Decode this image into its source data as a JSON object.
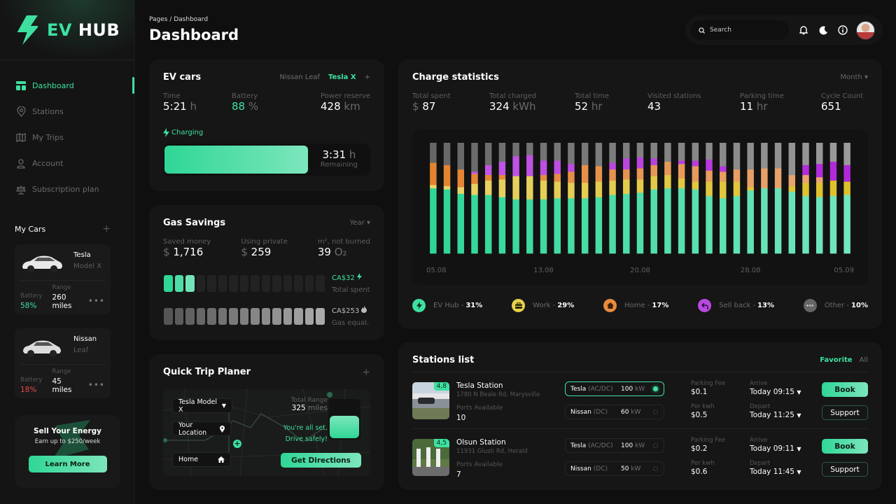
{
  "app": {
    "brand_a": "EV",
    "brand_b": "HUB"
  },
  "sidebar": {
    "items": [
      {
        "label": "Dashboard",
        "icon": "dashboard-icon",
        "active": true
      },
      {
        "label": "Stations",
        "icon": "location-pin-icon"
      },
      {
        "label": "My Trips",
        "icon": "map-icon"
      },
      {
        "label": "Account",
        "icon": "user-icon"
      },
      {
        "label": "Subscription plan",
        "icon": "scale-icon"
      }
    ],
    "my_cars_title": "My Cars",
    "cars": [
      {
        "make": "Tesla",
        "model": "Model X",
        "battery_label": "Battery",
        "battery": "58%",
        "range_label": "Range",
        "range": "260 miles",
        "battery_color": "#3ee0a0"
      },
      {
        "make": "Nissan",
        "model": "Leaf",
        "battery_label": "Battery",
        "battery": "18%",
        "range_label": "Range",
        "range": "45 miles",
        "battery_color": "#e5484d"
      }
    ],
    "promo": {
      "title": "Sell Your Energy",
      "subtitle": "Earn up to $250/week",
      "button": "Learn More"
    }
  },
  "header": {
    "breadcrumb": "Pages / Dashboard",
    "title": "Dashboard",
    "search_placeholder": "Search"
  },
  "ev_cars": {
    "title": "EV cars",
    "tabs": [
      "Nissan Leaf",
      "Tesla X"
    ],
    "active_tab": "Tesla X",
    "time_label": "Time",
    "time_value": "5:21",
    "time_unit": "h",
    "battery_label": "Battery",
    "battery_value": "88",
    "battery_unit": "%",
    "reserve_label": "Power reserve",
    "reserve_value": "428",
    "reserve_unit": "km",
    "status": "Charging",
    "charge_progress_percent": 88,
    "remaining_value": "3:31",
    "remaining_unit": "h",
    "remaining_label": "Remaining"
  },
  "gas_savings": {
    "title": "Gas Savings",
    "period": "Year",
    "saved_label": "Saved money",
    "saved_currency": "$",
    "saved_value": "1,716",
    "private_label": "Using private",
    "private_currency": "$",
    "private_value": "259",
    "co2_label": "m², not burned",
    "co2_value": "39",
    "co2_unit": "O₂",
    "spent_value": "CA$32",
    "spent_label": "Total spent",
    "spent_filled_segments": 3,
    "total_segments": 15,
    "gas_value": "CA$253",
    "gas_label": "Gas equal."
  },
  "trip": {
    "title": "Quick Trip Planer",
    "car_select": "Tesla Model X",
    "from": "Your Location",
    "to": "Home",
    "range_label": "Total Range",
    "range_value": "325",
    "range_unit": "miles",
    "message_1": "You're all set.",
    "message_2": "Drive safely!",
    "battery_level_percent": 60,
    "button": "Get Directions"
  },
  "charge_stats": {
    "title": "Charge statistics",
    "period": "Month",
    "stats": [
      {
        "label": "Total spent",
        "prefix": "$",
        "value": "87",
        "unit": ""
      },
      {
        "label": "Total charged",
        "prefix": "",
        "value": "324",
        "unit": "kWh"
      },
      {
        "label": "Total time",
        "prefix": "",
        "value": "52",
        "unit": "hr"
      },
      {
        "label": "Visited stations",
        "prefix": "",
        "value": "43",
        "unit": ""
      },
      {
        "label": "Parking time",
        "prefix": "",
        "value": "11",
        "unit": "hr"
      },
      {
        "label": "Cycle Count",
        "prefix": "",
        "value": "651",
        "unit": ""
      }
    ],
    "legend": [
      {
        "name": "EV Hub",
        "pct": "31%",
        "color": "#3ee0a0",
        "icon": "bolt-icon"
      },
      {
        "name": "Work",
        "pct": "29%",
        "color": "#e6d24a",
        "icon": "briefcase-icon"
      },
      {
        "name": "Home",
        "pct": "17%",
        "color": "#e88b3e",
        "icon": "home-icon"
      },
      {
        "name": "Sell back",
        "pct": "13%",
        "color": "#b84be0",
        "icon": "undo-arrow-icon"
      },
      {
        "name": "Other",
        "pct": "10%",
        "color": "#777777",
        "icon": "more-dots-icon"
      }
    ]
  },
  "chart_data": {
    "type": "bar",
    "stacked": true,
    "normalized": true,
    "title": "Charge statistics",
    "xlabel": "",
    "ylabel": "",
    "ylim": [
      0,
      100
    ],
    "x_ticks": [
      "05.08",
      "13.08",
      "20.08",
      "28.08",
      "05.09"
    ],
    "categories": [
      "05.08",
      "06.08",
      "07.08",
      "08.08",
      "09.08",
      "10.08",
      "11.08",
      "12.08",
      "13.08",
      "14.08",
      "15.08",
      "16.08",
      "17.08",
      "18.08",
      "19.08",
      "20.08",
      "21.08",
      "22.08",
      "23.08",
      "24.08",
      "25.08",
      "26.08",
      "27.08",
      "28.08",
      "29.08",
      "30.08",
      "31.08",
      "01.09",
      "02.09",
      "03.09",
      "04.09"
    ],
    "series": [
      {
        "name": "EV Hub",
        "color": "#3ee0a0",
        "values": [
          59,
          58,
          54,
          53,
          53,
          51,
          49,
          49,
          49,
          50,
          50,
          50,
          51,
          53,
          54,
          55,
          58,
          59,
          59,
          58,
          52,
          50,
          52,
          57,
          59,
          59,
          56,
          52,
          51,
          52,
          53
        ]
      },
      {
        "name": "Work",
        "color": "#e6d24a",
        "values": [
          3,
          3,
          6,
          10,
          13,
          16,
          21,
          21,
          17,
          15,
          14,
          14,
          14,
          13,
          13,
          12,
          12,
          12,
          9,
          7,
          13,
          15,
          13,
          3,
          0,
          0,
          5,
          12,
          13,
          14,
          12
        ]
      },
      {
        "name": "Home",
        "color": "#e88b3e",
        "values": [
          20,
          19,
          16,
          9,
          5,
          4,
          0,
          0,
          5,
          7,
          10,
          16,
          14,
          10,
          9,
          10,
          10,
          12,
          13,
          14,
          10,
          9,
          11,
          16,
          18,
          18,
          10,
          7,
          5,
          0,
          0
        ]
      },
      {
        "name": "Sell back",
        "color": "#b84be0",
        "values": [
          0,
          0,
          0,
          2,
          9,
          12,
          18,
          19,
          13,
          12,
          7,
          0,
          0,
          6,
          10,
          10,
          6,
          0,
          3,
          5,
          10,
          5,
          0,
          0,
          0,
          0,
          0,
          9,
          12,
          17,
          15
        ]
      },
      {
        "name": "Other",
        "color": "#777777",
        "values": [
          18,
          20,
          24,
          26,
          20,
          17,
          12,
          11,
          16,
          16,
          19,
          20,
          21,
          18,
          14,
          13,
          14,
          17,
          16,
          16,
          15,
          21,
          24,
          24,
          23,
          23,
          29,
          20,
          19,
          17,
          20
        ]
      }
    ]
  },
  "stations": {
    "title": "Stations list",
    "filters": [
      "Favorite",
      "All"
    ],
    "active_filter": "Favorite",
    "rows": [
      {
        "name": "Tesla Station",
        "address": "1780 N Beale Rd, Marysville",
        "rating": "4,8",
        "ports_label": "Ports Available",
        "ports": "10",
        "port_options": [
          {
            "brand": "Tesla",
            "type": "(AC/DC)",
            "power": "100",
            "unit": "kW",
            "selected": true
          },
          {
            "brand": "Nissan",
            "type": "(DC)",
            "power": "60",
            "unit": "kW",
            "selected": false
          }
        ],
        "parking_label": "Parking Fee",
        "parking": "$0.1",
        "kwh_label": "Per kwh",
        "kwh": "$0.5",
        "arrive_label": "Arrive",
        "arrive": "Today 09:15",
        "depart_label": "Depart",
        "depart": "Today 11:25",
        "book": "Book",
        "support": "Support"
      },
      {
        "name": "Olsun Station",
        "address": "11931 Giusti Rd, Herald",
        "rating": "4,5",
        "ports_label": "Ports Available",
        "ports": "7",
        "port_options": [
          {
            "brand": "Tesla",
            "type": "(AC/DC)",
            "power": "100",
            "unit": "kW",
            "selected": false
          },
          {
            "brand": "Nissan",
            "type": "(DC)",
            "power": "50",
            "unit": "kW",
            "selected": false
          }
        ],
        "parking_label": "Parking Fee",
        "parking": "$0.2",
        "kwh_label": "Per kwh",
        "kwh": "$0.6",
        "arrive_label": "Arrive",
        "arrive": "Today 09:11",
        "depart_label": "Depart",
        "depart": "Today 11:45",
        "book": "Book",
        "support": "Support"
      }
    ]
  }
}
